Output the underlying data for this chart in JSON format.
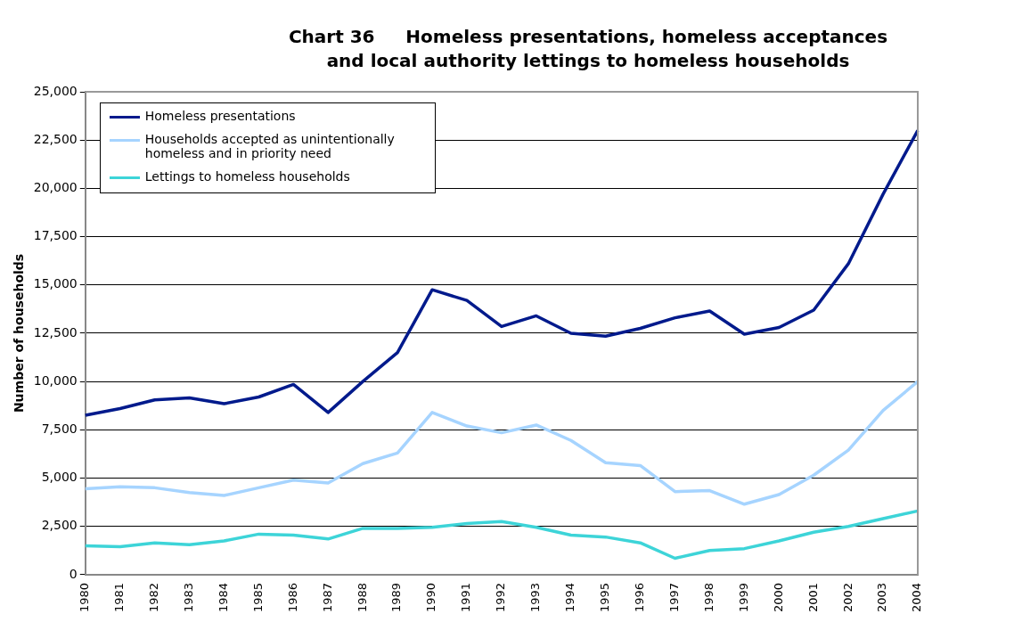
{
  "chart_data": {
    "type": "line",
    "title": "Chart 36     Homeless presentations, homeless acceptances  and local authority lettings to homeless households",
    "ylabel": "Number of households",
    "categories": [
      "1980",
      "1981",
      "1982",
      "1983",
      "1984",
      "1985",
      "1986",
      "1987",
      "1988",
      "1989",
      "1990",
      "1991",
      "1992",
      "1993",
      "1994",
      "1995",
      "1996",
      "1997",
      "1998",
      "1999",
      "2000",
      "2001",
      "2002",
      "2003",
      "2004"
    ],
    "series": [
      {
        "name": "Homeless presentations",
        "color": "#001a8c",
        "values": [
          8250,
          8600,
          9050,
          9150,
          8850,
          9200,
          9850,
          8400,
          10000,
          11500,
          14750,
          14200,
          12850,
          13400,
          12500,
          12350,
          12750,
          13300,
          13650,
          12450,
          12800,
          13700,
          16100,
          19700,
          23000
        ]
      },
      {
        "name": "Households accepted as unintentionally homeless and in priority need",
        "color": "#a6d4ff",
        "values": [
          4450,
          4550,
          4500,
          4250,
          4100,
          4500,
          4900,
          4750,
          5750,
          6300,
          8400,
          7700,
          7350,
          7750,
          6950,
          5800,
          5650,
          4300,
          4350,
          3650,
          4150,
          5150,
          6450,
          8500,
          10000
        ]
      },
      {
        "name": "Lettings to homeless households",
        "color": "#3dd4d8",
        "values": [
          1500,
          1450,
          1650,
          1550,
          1750,
          2100,
          2050,
          1850,
          2400,
          2400,
          2450,
          2650,
          2750,
          2450,
          2050,
          1950,
          1650,
          850,
          1250,
          1350,
          1750,
          2200,
          2500,
          2900,
          3300
        ]
      }
    ],
    "ylim": [
      0,
      25000
    ],
    "yticks": [
      0,
      {
        "value": 2500,
        "label": "2,500"
      },
      {
        "value": 5000,
        "label": "5,000"
      },
      {
        "value": 7500,
        "label": "7,500"
      },
      {
        "value": 10000,
        "label": "10,000"
      },
      {
        "value": 12500,
        "label": "12,500"
      },
      {
        "value": 15000,
        "label": "15,000"
      },
      {
        "value": 17500,
        "label": "17,500"
      },
      {
        "value": 20000,
        "label": "20,000"
      },
      {
        "value": 22500,
        "label": "22,500"
      },
      {
        "value": 25000,
        "label": "25,000"
      }
    ],
    "grid": "y",
    "legend": "top left",
    "marker": "none",
    "line_style": "solid"
  }
}
